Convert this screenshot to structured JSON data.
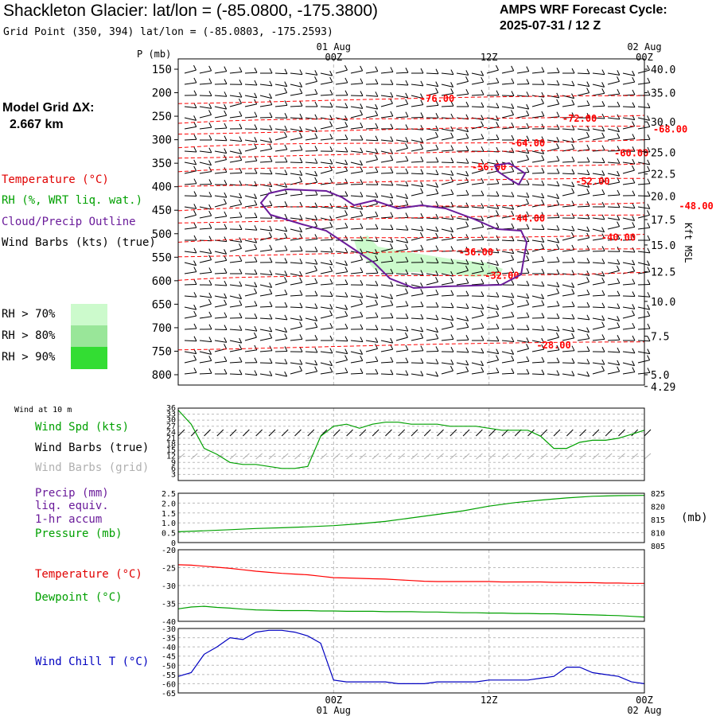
{
  "header": {
    "title": "Shackleton Glacier:  lat/lon = (-85.0800, -175.3800)",
    "subtitle": "Grid Point (350, 394) lat/lon = (-85.0803, -175.2593)",
    "cycle_line1": "AMPS WRF Forecast Cycle:",
    "cycle_line2": "2025-07-31 / 12  Z"
  },
  "sidebar": {
    "model_grid_label": "Model Grid ΔX:",
    "model_grid_value": "2.667 km",
    "legend_temperature": "Temperature (°C)",
    "legend_rh": "RH (%, WRT liq. wat.)",
    "legend_cloud": "Cloud/Precip Outline",
    "legend_wind": "Wind Barbs (kts) (true)",
    "rh70": "RH > 70%",
    "rh80": "RH > 80%",
    "rh90": "RH > 90%",
    "wind10m": "Wind at 10 m",
    "wind_spd": "Wind Spd (kts)",
    "wind_barbs_true": "Wind Barbs (true)",
    "wind_barbs_grid": "Wind Barbs (grid)",
    "precip_l1": "Precip (mm)",
    "precip_l2": "liq. equiv.",
    "precip_l3": "1-hr accum",
    "pressure": "Pressure (mb)",
    "temperature": "Temperature (°C)",
    "dewpoint": "Dewpoint (°C)",
    "windchill": "Wind Chill T (°C)",
    "pressure_unit": "(mb)",
    "height_axis_label": "Kft MSL"
  },
  "colors": {
    "temperature": "#ff0000",
    "rh": "#00a000",
    "cloud": "#6a1b9a",
    "wind": "#000000",
    "wind_grid": "#b0b0b0",
    "windchill": "#0000c0",
    "rh70": "#ccfacc",
    "rh80": "#99e699",
    "rh90": "#33dd33"
  },
  "chart_data": [
    {
      "type": "line",
      "name": "cross-section",
      "yaxis_label": "P (mb)",
      "pressure_ticks": [
        "150",
        "200",
        "250",
        "300",
        "350",
        "400",
        "450",
        "500",
        "550",
        "600",
        "650",
        "700",
        "750",
        "800"
      ],
      "height_ticks": [
        {
          "label": "40.0",
          "p": 150
        },
        {
          "label": "35.0",
          "p": 200
        },
        {
          "label": "30.0",
          "p": 262
        },
        {
          "label": "25.0",
          "p": 327
        },
        {
          "label": "22.5",
          "p": 373
        },
        {
          "label": "20.0",
          "p": 420
        },
        {
          "label": "17.5",
          "p": 470
        },
        {
          "label": "15.0",
          "p": 524
        },
        {
          "label": "12.5",
          "p": 581
        },
        {
          "label": "10.0",
          "p": 644
        },
        {
          "label": "7.5",
          "p": 718
        },
        {
          "label": "5.0",
          "p": 800
        },
        {
          "label": "4.29",
          "p": 825
        }
      ],
      "time_top": [
        {
          "line1": "01 Aug",
          "line2": "00Z",
          "h": 12
        },
        {
          "line1": "",
          "line2": "12Z",
          "h": 24
        },
        {
          "line1": "02 Aug",
          "line2": "00Z",
          "h": 36
        }
      ],
      "isotherms": [
        {
          "label": "-76.00",
          "lx": 20,
          "lp": 213
        },
        {
          "label": "-72.00",
          "lx": 31,
          "lp": 255
        },
        {
          "label": "-68.00",
          "lx": 38,
          "lp": 278
        },
        {
          "label": "-64.00",
          "lx": 27,
          "lp": 307
        },
        {
          "label": "-60.00",
          "lx": 35,
          "lp": 329
        },
        {
          "label": "-56.00",
          "lx": 24,
          "lp": 358
        },
        {
          "label": "-52.00",
          "lx": 32,
          "lp": 389
        },
        {
          "label": "-48.00",
          "lx": 40,
          "lp": 441
        },
        {
          "label": "-44.00",
          "lx": 27,
          "lp": 467
        },
        {
          "label": "-40.00",
          "lx": 34,
          "lp": 508
        },
        {
          "label": "-36.00",
          "lx": 23,
          "lp": 539
        },
        {
          "label": "-32.00",
          "lx": 25,
          "lp": 589
        },
        {
          "label": "-28.00",
          "lx": 29,
          "lp": 737
        }
      ]
    },
    {
      "type": "line",
      "name": "wind-speed-10m",
      "yticks": [
        "36",
        "33",
        "30",
        "27",
        "24",
        "21",
        "18",
        "15",
        "12",
        "9",
        "6",
        "3"
      ],
      "ylim": [
        0,
        36
      ],
      "x_hours": [
        0,
        1,
        2,
        3,
        4,
        5,
        6,
        7,
        8,
        9,
        10,
        11,
        12,
        13,
        14,
        15,
        16,
        17,
        18,
        19,
        20,
        21,
        22,
        23,
        24,
        25,
        26,
        27,
        28,
        29,
        30,
        31,
        32,
        33,
        34,
        35,
        36
      ],
      "values": [
        35,
        28,
        16,
        13,
        9,
        8,
        8,
        7,
        6,
        6,
        7,
        22,
        27,
        28,
        26,
        28,
        29,
        29,
        28,
        28,
        28,
        27,
        27,
        27,
        26,
        25,
        25,
        25,
        22,
        16,
        16,
        19,
        20,
        20,
        21,
        23,
        25
      ]
    },
    {
      "type": "line",
      "name": "precip-pressure",
      "precip_ticks": [
        "2.5",
        "2.0",
        "1.5",
        "1.0",
        "0.5",
        "0"
      ],
      "pressure_ticks": [
        "825",
        "820",
        "815",
        "810",
        "805"
      ],
      "pressure_lim": [
        805,
        826
      ],
      "x_hours": [
        0,
        2,
        4,
        6,
        8,
        10,
        12,
        14,
        16,
        18,
        20,
        22,
        24,
        26,
        28,
        30,
        32,
        34,
        36
      ],
      "pressure_values": [
        809.6,
        810.0,
        810.5,
        811.0,
        811.3,
        811.7,
        812.2,
        813.0,
        814.0,
        815.5,
        817.0,
        818.5,
        820.5,
        822.0,
        823.1,
        824.0,
        824.7,
        825.0,
        825.1
      ]
    },
    {
      "type": "line",
      "name": "temperature-dewpoint",
      "yticks": [
        "-20",
        "-25",
        "-30",
        "-35",
        "-40"
      ],
      "ylim": [
        -40,
        -20
      ],
      "x_hours": [
        0,
        1,
        2,
        3,
        4,
        5,
        6,
        7,
        8,
        9,
        10,
        11,
        12,
        13,
        14,
        15,
        16,
        17,
        18,
        19,
        20,
        21,
        22,
        23,
        24,
        25,
        26,
        27,
        28,
        29,
        30,
        31,
        32,
        33,
        34,
        35,
        36
      ],
      "temperature": [
        -24.2,
        -24.3,
        -24.6,
        -24.9,
        -25.2,
        -25.6,
        -26.0,
        -26.3,
        -26.6,
        -26.8,
        -27.0,
        -27.4,
        -27.8,
        -27.9,
        -28.0,
        -28.1,
        -28.2,
        -28.4,
        -28.6,
        -28.8,
        -28.9,
        -28.9,
        -28.9,
        -28.9,
        -28.9,
        -29.0,
        -29.0,
        -29.0,
        -29.0,
        -29.1,
        -29.1,
        -29.2,
        -29.2,
        -29.3,
        -29.3,
        -29.4,
        -29.4
      ],
      "dewpoint": [
        -36.5,
        -36.0,
        -35.8,
        -36.1,
        -36.3,
        -36.6,
        -36.8,
        -36.9,
        -37.0,
        -37.0,
        -37.0,
        -37.1,
        -37.1,
        -37.2,
        -37.2,
        -37.2,
        -37.3,
        -37.3,
        -37.3,
        -37.4,
        -37.4,
        -37.5,
        -37.6,
        -37.6,
        -37.7,
        -37.7,
        -37.8,
        -37.8,
        -37.9,
        -37.9,
        -38.0,
        -38.1,
        -38.2,
        -38.3,
        -38.4,
        -38.6,
        -38.8
      ]
    },
    {
      "type": "line",
      "name": "wind-chill",
      "yticks": [
        "-30",
        "-35",
        "-40",
        "-45",
        "-50",
        "-55",
        "-60",
        "-65"
      ],
      "ylim": [
        -65,
        -30
      ],
      "x_hours": [
        0,
        1,
        2,
        3,
        4,
        5,
        6,
        7,
        8,
        9,
        10,
        11,
        12,
        13,
        14,
        15,
        16,
        17,
        18,
        19,
        20,
        21,
        22,
        23,
        24,
        25,
        26,
        27,
        28,
        29,
        30,
        31,
        32,
        33,
        34,
        35,
        36
      ],
      "values": [
        -56,
        -54,
        -44,
        -40,
        -35,
        -36,
        -32,
        -31,
        -31,
        -32,
        -34,
        -38,
        -58,
        -59,
        -59,
        -59,
        -59,
        -60,
        -60,
        -60,
        -59,
        -59,
        -59,
        -59,
        -58,
        -58,
        -58,
        -58,
        -57,
        -56,
        -51,
        -51,
        -54,
        -55,
        -56,
        -59,
        -60
      ]
    },
    {
      "type": "line",
      "name": "bottom-time-axis",
      "ticks": [
        {
          "line1": "00Z",
          "line2": "01 Aug",
          "h": 12
        },
        {
          "line1": "12Z",
          "line2": "",
          "h": 24
        },
        {
          "line1": "00Z",
          "line2": "02 Aug",
          "h": 36
        }
      ]
    }
  ]
}
